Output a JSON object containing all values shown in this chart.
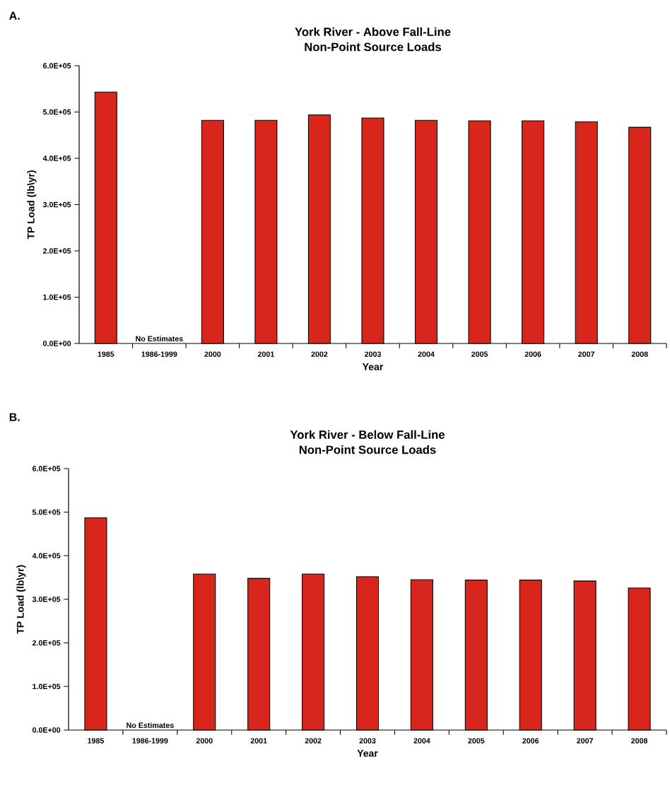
{
  "chart_data": [
    {
      "type": "bar",
      "title": "York River - Above Fall-Line",
      "subtitle": "Non-Point Source Loads",
      "xlabel": "Year",
      "ylabel": "TP Load (lb\\yr)",
      "annotations": [
        "A.",
        "No Estimates"
      ],
      "categories": [
        "1985",
        "1986-1999",
        "2000",
        "2001",
        "2002",
        "2003",
        "2004",
        "2005",
        "2006",
        "2007",
        "2008"
      ],
      "values": [
        543000,
        null,
        482000,
        482000,
        494000,
        487000,
        482000,
        481000,
        481000,
        479000,
        467000
      ],
      "color": "#d9261c",
      "ylim": [
        0,
        600000
      ],
      "yticks": [
        {
          "value": 0,
          "label": "0.0E+00"
        },
        {
          "value": 100000,
          "label": "1.0E+05"
        },
        {
          "value": 200000,
          "label": "2.0E+05"
        },
        {
          "value": 300000,
          "label": "3.0E+05"
        },
        {
          "value": 400000,
          "label": "4.0E+05"
        },
        {
          "value": 500000,
          "label": "5.0E+05"
        },
        {
          "value": 600000,
          "label": "6.0E+05"
        }
      ]
    },
    {
      "type": "bar",
      "title": "York River - Below Fall-Line",
      "subtitle": "Non-Point Source Loads",
      "xlabel": "Year",
      "ylabel": "TP Load (lb\\yr)",
      "annotations": [
        "B.",
        "No Estimates"
      ],
      "categories": [
        "1985",
        "1986-1999",
        "2000",
        "2001",
        "2002",
        "2003",
        "2004",
        "2005",
        "2006",
        "2007",
        "2008"
      ],
      "values": [
        487000,
        null,
        358000,
        348000,
        358000,
        352000,
        345000,
        344000,
        344000,
        342000,
        326000
      ],
      "color": "#d9261c",
      "ylim": [
        0,
        600000
      ],
      "yticks": [
        {
          "value": 0,
          "label": "0.0E+00"
        },
        {
          "value": 100000,
          "label": "1.0E+05"
        },
        {
          "value": 200000,
          "label": "2.0E+05"
        },
        {
          "value": 300000,
          "label": "3.0E+05"
        },
        {
          "value": 400000,
          "label": "4.0E+05"
        },
        {
          "value": 500000,
          "label": "5.0E+05"
        },
        {
          "value": 600000,
          "label": "6.0E+05"
        }
      ]
    }
  ]
}
